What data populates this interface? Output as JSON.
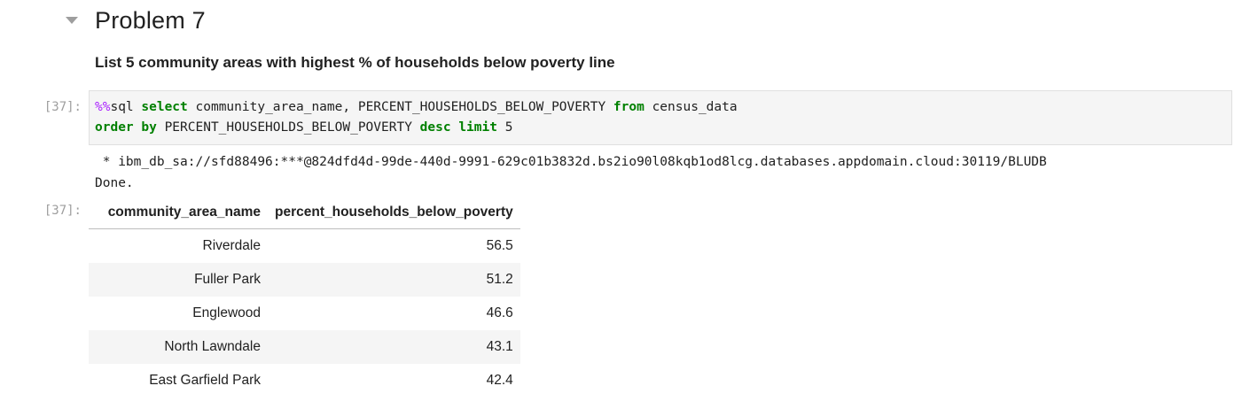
{
  "markdown": {
    "heading": "Problem 7",
    "subheading": "List 5 community areas with highest % of households below poverty line"
  },
  "input_cell": {
    "prompt": "[37]:",
    "line1": {
      "magic": "%%",
      "t1": "sql ",
      "kw1": "select",
      "t2": " community_area_name, PERCENT_HOUSEHOLDS_BELOW_POVERTY ",
      "kw2": "from",
      "t3": " census_data"
    },
    "line2": {
      "kw1": "order by",
      "t1": " PERCENT_HOUSEHOLDS_BELOW_POVERTY ",
      "kw2": "desc",
      "t2": " ",
      "kw3": "limit",
      "t3": " 5"
    }
  },
  "output": {
    "stdout_line1": " * ibm_db_sa://sfd88496:***@824dfd4d-99de-440d-9991-629c01b3832d.bs2io90l08kqb1od8lcg.databases.appdomain.cloud:30119/BLUDB",
    "stdout_line2": "Done.",
    "prompt": "[37]:",
    "table": {
      "headers": [
        "community_area_name",
        "percent_households_below_poverty"
      ],
      "rows": [
        [
          "Riverdale",
          "56.5"
        ],
        [
          "Fuller Park",
          "51.2"
        ],
        [
          "Englewood",
          "46.6"
        ],
        [
          "North Lawndale",
          "43.1"
        ],
        [
          "East Garfield Park",
          "42.4"
        ]
      ]
    }
  }
}
